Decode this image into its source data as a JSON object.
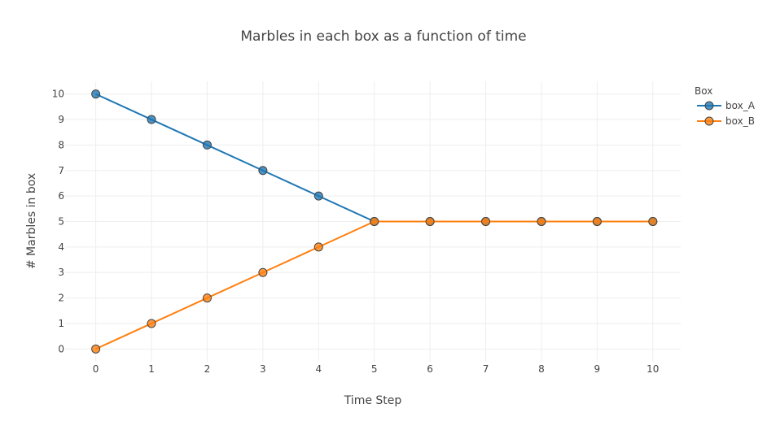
{
  "chart_data": {
    "type": "line",
    "title": "Marbles in each box as a function of time",
    "xlabel": "Time Step",
    "ylabel": "# Marbles in box",
    "x": [
      0,
      1,
      2,
      3,
      4,
      5,
      6,
      7,
      8,
      9,
      10
    ],
    "xlim": [
      -0.55,
      10.5
    ],
    "ylim": [
      -0.5,
      10.5
    ],
    "xticks": [
      0,
      1,
      2,
      3,
      4,
      5,
      6,
      7,
      8,
      9,
      10
    ],
    "yticks": [
      0,
      1,
      2,
      3,
      4,
      5,
      6,
      7,
      8,
      9,
      10
    ],
    "grid": true,
    "legend": {
      "title": "Box",
      "position": "top-right"
    },
    "series": [
      {
        "name": "box_A",
        "color": "#1f77b4",
        "values": [
          10,
          9,
          8,
          7,
          6,
          5,
          5,
          5,
          5,
          5,
          5
        ]
      },
      {
        "name": "box_B",
        "color": "#ff7f0e",
        "values": [
          0,
          1,
          2,
          3,
          4,
          5,
          5,
          5,
          5,
          5,
          5
        ]
      }
    ]
  }
}
